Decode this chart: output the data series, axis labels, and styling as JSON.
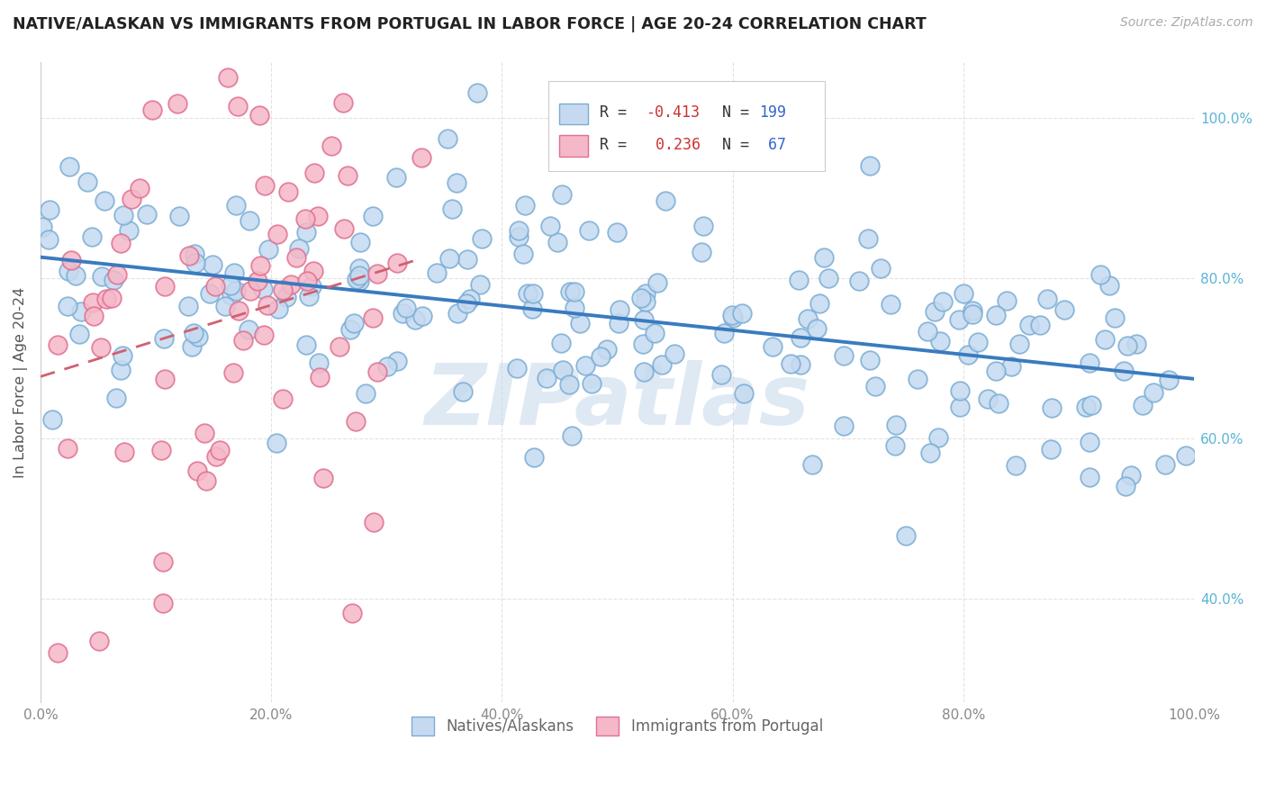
{
  "title": "NATIVE/ALASKAN VS IMMIGRANTS FROM PORTUGAL IN LABOR FORCE | AGE 20-24 CORRELATION CHART",
  "source": "Source: ZipAtlas.com",
  "ylabel": "In Labor Force | Age 20-24",
  "xlim": [
    0.0,
    1.0
  ],
  "ylim": [
    0.27,
    1.07
  ],
  "native_color": "#c5daf0",
  "native_edge_color": "#7aadd4",
  "portugal_color": "#f5b8c8",
  "portugal_edge_color": "#e07090",
  "trend_native_color": "#3a7bbf",
  "trend_portugal_color": "#d06070",
  "native_R": -0.413,
  "native_N": 199,
  "portugal_R": 0.236,
  "portugal_N": 67,
  "background_color": "#ffffff",
  "grid_color": "#e2e2e2",
  "grid_style": "--",
  "watermark_text": "ZIPatlas",
  "watermark_color": "#c5d8ea",
  "tick_color_right": "#5ab4d6",
  "tick_color_bottom": "#888888",
  "legend_R_native_color": "#d44",
  "legend_N_native_color": "#33a",
  "legend_R_portugal_color": "#d44",
  "legend_N_portugal_color": "#33a"
}
